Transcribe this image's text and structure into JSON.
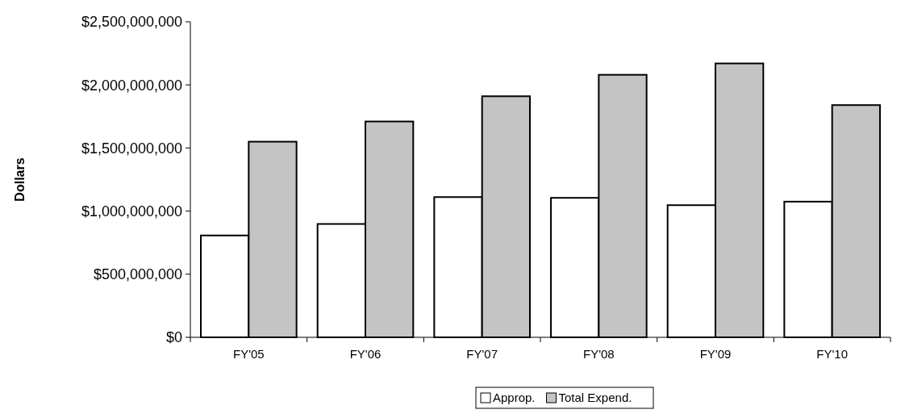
{
  "chart_data": {
    "type": "bar",
    "ylabel": "Dollars",
    "categories": [
      "FY'05",
      "FY'06",
      "FY'07",
      "FY'08",
      "FY'09",
      "FY'10"
    ],
    "series": [
      {
        "name": "Approp.",
        "color": "#ffffff",
        "values": [
          807000000,
          898000000,
          1111000000,
          1105000000,
          1047000000,
          1075000000
        ]
      },
      {
        "name": "Total Expend.",
        "color": "#c4c4c4",
        "values": [
          1550000000,
          1710000000,
          1910000000,
          2080000000,
          2170000000,
          1840000000
        ]
      }
    ],
    "ylim": [
      0,
      2500000000
    ],
    "yticks": [
      {
        "value": 0,
        "label": "$0"
      },
      {
        "value": 500000000,
        "label": "$500,000,000"
      },
      {
        "value": 1000000000,
        "label": "$1,000,000,000"
      },
      {
        "value": 1500000000,
        "label": "$1,500,000,000"
      },
      {
        "value": 2000000000,
        "label": "$2,000,000,000"
      },
      {
        "value": 2500000000,
        "label": "$2,500,000,000"
      }
    ],
    "grid": false,
    "legend": "bottom"
  }
}
